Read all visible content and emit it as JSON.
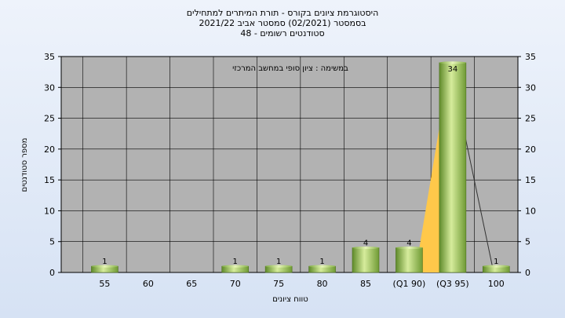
{
  "chart_data": {
    "type": "bar",
    "title_lines": [
      "היסטוגרמת ציונים בקורס - תורת המיתרים למתחילים",
      "בסמסטר  (02/2021)  סמסטר אביב 2021/22",
      "סטודנטים רשומים - 48"
    ],
    "annotation": "במשימה : ציון סופי במחשב המרכזי",
    "categories": [
      "55",
      "60",
      "65",
      "70",
      "75",
      "80",
      "85",
      "(Q1 90)",
      "(Q3 95)",
      "100"
    ],
    "values": [
      1,
      0,
      0,
      1,
      1,
      1,
      4,
      4,
      34,
      1
    ],
    "data_labels": [
      "1",
      "",
      "",
      "1",
      "1",
      "1",
      "4",
      "4",
      "34",
      "1"
    ],
    "xlabel": "טווח ציונים",
    "ylabel": "מספר סטודנטים",
    "ylim": [
      0,
      35
    ],
    "yticks": [
      0,
      5,
      10,
      15,
      20,
      25,
      30,
      35
    ],
    "grid": true,
    "colors": {
      "plot_bg": "#b2b2b2",
      "bar_light": "#d6ec9c",
      "bar_mid": "#9cc95a",
      "bar_dark": "#5f8a2a",
      "quartile_fill": "#ffc84a"
    }
  }
}
